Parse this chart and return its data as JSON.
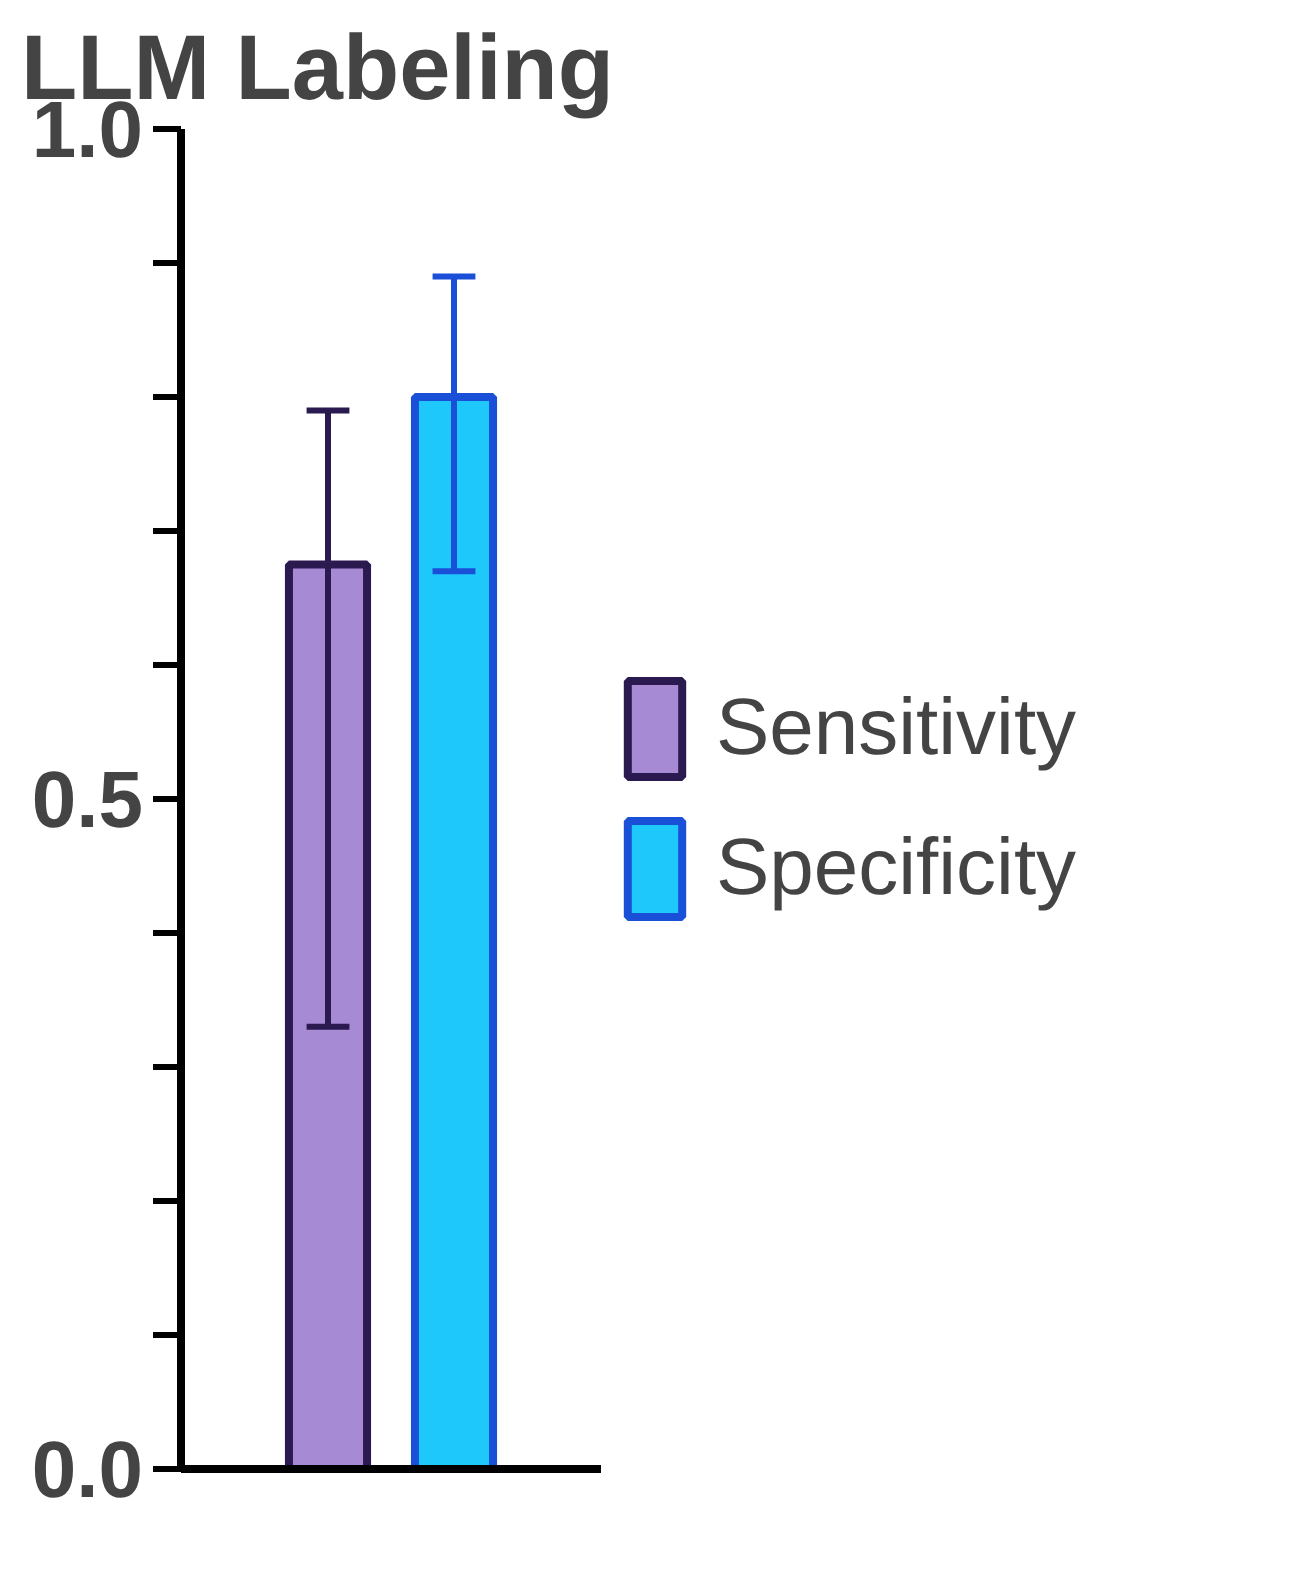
{
  "chart_data": {
    "type": "bar",
    "title": "LLM Labeling",
    "categories": [
      null
    ],
    "series": [
      {
        "name": "Sensitivity",
        "color": "#a68bd4",
        "values": [
          0.675
        ],
        "errors": [
          [
            0.33,
            0.79
          ]
        ]
      },
      {
        "name": "Specificity",
        "color": "#1ec8fb",
        "values": [
          0.8
        ],
        "errors": [
          [
            0.67,
            0.89
          ]
        ]
      }
    ],
    "ylim": [
      0,
      1.0
    ],
    "yticks": [
      {
        "value": 0.0,
        "label": "0.0"
      },
      {
        "value": 0.1,
        "label": null
      },
      {
        "value": 0.2,
        "label": null
      },
      {
        "value": 0.3,
        "label": null
      },
      {
        "value": 0.4,
        "label": null
      },
      {
        "value": 0.5,
        "label": "0.5"
      },
      {
        "value": 0.6,
        "label": null
      },
      {
        "value": 0.7,
        "label": null
      },
      {
        "value": 0.8,
        "label": null
      },
      {
        "value": 0.9,
        "label": null
      },
      {
        "value": 1.0,
        "label": "1.0"
      }
    ],
    "tick_labels": "y",
    "grid": false,
    "legend": "right"
  }
}
